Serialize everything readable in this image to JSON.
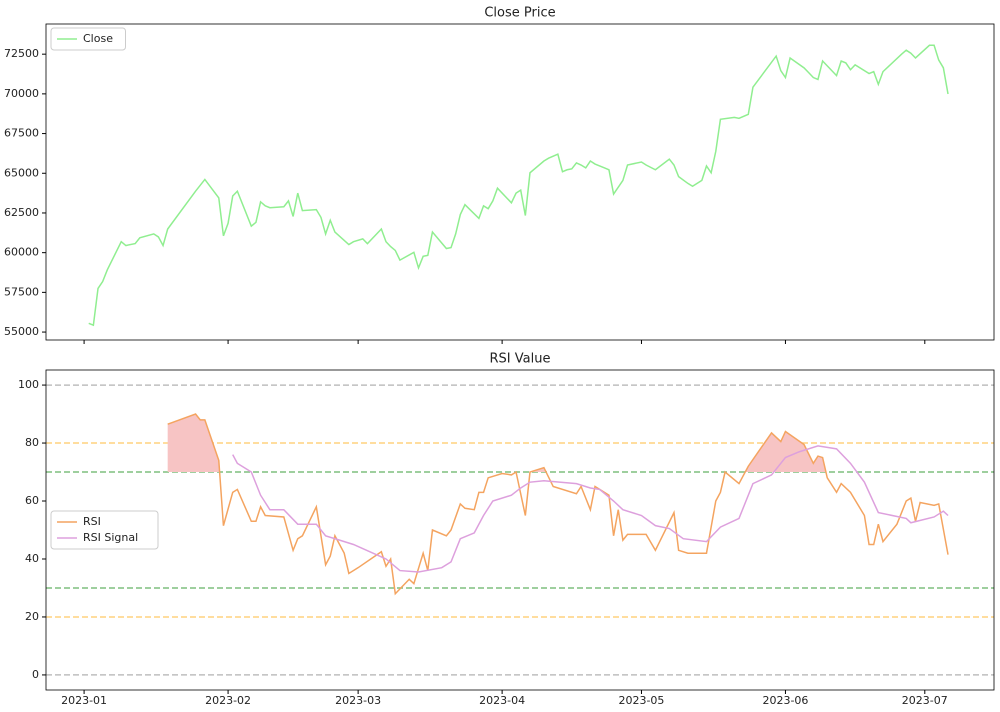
{
  "chart_data": [
    {
      "type": "line",
      "title": "Close Price",
      "legend": "upper left",
      "xlim": [
        -8.2,
        195.9
      ],
      "xticks": [
        0,
        31,
        59,
        90,
        120,
        151,
        181
      ],
      "ylim": [
        54500,
        74400
      ],
      "yticks": [
        55000,
        57500,
        60000,
        62500,
        65000,
        67500,
        70000,
        72500
      ],
      "series": [
        {
          "name": "Close",
          "color": "#90ee90",
          "x": [
            1,
            2,
            3,
            4,
            5,
            8,
            9,
            11,
            12,
            15,
            16,
            17,
            18,
            24,
            26,
            29,
            30,
            31,
            32,
            33,
            36,
            37,
            38,
            39,
            40,
            43,
            44,
            45,
            46,
            47,
            50,
            51,
            52,
            53,
            54,
            57,
            58,
            60,
            61,
            64,
            65,
            66,
            67,
            68,
            71,
            72,
            73,
            74,
            75,
            78,
            79,
            80,
            81,
            82,
            85,
            86,
            87,
            88,
            89,
            92,
            93,
            94,
            95,
            96,
            99,
            100,
            102,
            103,
            104,
            105,
            106,
            107,
            108,
            109,
            110,
            112,
            113,
            114,
            116,
            117,
            120,
            121,
            123,
            126,
            127,
            128,
            130,
            131,
            133,
            134,
            135,
            136,
            137,
            140,
            141,
            143,
            144,
            149,
            150,
            151,
            152,
            155,
            156,
            157,
            158,
            159,
            162,
            163,
            164,
            165,
            166,
            169,
            170,
            171,
            172,
            176,
            177,
            178,
            179,
            182,
            183,
            184,
            185,
            186
          ],
          "values": [
            55550,
            55430,
            57750,
            58180,
            58920,
            60690,
            60450,
            60570,
            60940,
            61180,
            60990,
            60450,
            61490,
            63870,
            64610,
            63450,
            61060,
            61850,
            63570,
            63870,
            61670,
            61910,
            63200,
            62950,
            62830,
            62890,
            63260,
            62280,
            63750,
            62650,
            62710,
            62220,
            61180,
            62040,
            61300,
            60510,
            60690,
            60870,
            60570,
            61490,
            60690,
            60380,
            60140,
            59530,
            60020,
            59040,
            59770,
            59830,
            61300,
            60260,
            60320,
            61180,
            62400,
            63020,
            62160,
            62950,
            62770,
            63260,
            64060,
            63140,
            63750,
            63940,
            62340,
            65030,
            65770,
            65950,
            66200,
            65100,
            65220,
            65280,
            65650,
            65520,
            65340,
            65770,
            65580,
            65340,
            65220,
            63690,
            64550,
            65520,
            65710,
            65520,
            65220,
            65890,
            65520,
            64790,
            64360,
            64180,
            64550,
            65460,
            65030,
            66380,
            68400,
            68520,
            68460,
            68710,
            70420,
            72380,
            71460,
            71030,
            72260,
            71640,
            71340,
            71030,
            70910,
            72070,
            71150,
            72070,
            71950,
            71520,
            71830,
            71280,
            71400,
            70600,
            71400,
            72500,
            72750,
            72560,
            72260,
            73060,
            73060,
            72130,
            71640,
            69990
          ]
        }
      ]
    },
    {
      "type": "line",
      "title": "RSI Value",
      "legend": "center left",
      "xlim": [
        -8.2,
        195.9
      ],
      "xticks": [
        {
          "value": 0,
          "label": "2023-01"
        },
        {
          "value": 31,
          "label": "2023-02"
        },
        {
          "value": 59,
          "label": "2023-03"
        },
        {
          "value": 90,
          "label": "2023-04"
        },
        {
          "value": 120,
          "label": "2023-05"
        },
        {
          "value": 151,
          "label": "2023-06"
        },
        {
          "value": 181,
          "label": "2023-07"
        }
      ],
      "ylim": [
        -5.2,
        105.2
      ],
      "yticks": [
        0,
        20,
        40,
        60,
        80,
        100
      ],
      "hlines": [
        {
          "value": 100,
          "color": "#bfbfbf"
        },
        {
          "value": 80,
          "color": "#ffd27f"
        },
        {
          "value": 70,
          "color": "#7fbf7f"
        },
        {
          "value": 30,
          "color": "#7fbf7f"
        },
        {
          "value": 20,
          "color": "#ffd27f"
        },
        {
          "value": 0,
          "color": "#bfbfbf"
        }
      ],
      "fill": {
        "above": 70,
        "color": "#f7c4c4"
      },
      "series": [
        {
          "name": "RSI",
          "color": "#f4a460",
          "x": [
            18,
            24,
            25,
            26,
            29,
            30,
            32,
            33,
            36,
            37,
            38,
            39,
            43,
            45,
            46,
            47,
            50,
            52,
            53,
            54,
            56,
            57,
            59,
            64,
            65,
            66,
            67,
            70,
            71,
            73,
            74,
            75,
            78,
            79,
            81,
            82,
            84,
            85,
            86,
            87,
            90,
            92,
            93,
            95,
            96,
            99,
            101,
            106,
            107,
            109,
            110,
            113,
            114,
            115,
            116,
            117,
            121,
            123,
            127,
            128,
            130,
            134,
            136,
            137,
            138,
            141,
            143,
            148,
            150,
            151,
            155,
            157,
            158,
            159,
            160,
            162,
            163,
            165,
            168,
            169,
            170,
            171,
            172,
            175,
            177,
            178,
            179,
            180,
            183,
            184,
            186
          ],
          "values": [
            86.5,
            90,
            88,
            88,
            74,
            51.5,
            63,
            64,
            53,
            53,
            58,
            55,
            54.5,
            43,
            47,
            48,
            58,
            38,
            41,
            48,
            42,
            35,
            37,
            42.5,
            37.5,
            40,
            28,
            33,
            31.5,
            42,
            36,
            50,
            48,
            50,
            59,
            57.5,
            57,
            63,
            63,
            68,
            69.5,
            69,
            70,
            55,
            70,
            71.5,
            65,
            62.5,
            65,
            57,
            65,
            62,
            48,
            57,
            46.5,
            48.5,
            48.5,
            43,
            56,
            43,
            42,
            42,
            60,
            63,
            70,
            66,
            72,
            83.5,
            80.5,
            84,
            79.5,
            73,
            75.5,
            75,
            68,
            63,
            66,
            63,
            55,
            45,
            45,
            52,
            46,
            52,
            60,
            61,
            53,
            59.5,
            58.5,
            59,
            41.5
          ]
        },
        {
          "name": "RSI Signal",
          "color": "#dda0dd",
          "x": [
            32,
            33,
            36,
            38,
            40,
            43,
            46,
            50,
            52,
            55,
            58,
            65,
            68,
            72,
            77,
            79,
            81,
            84,
            86,
            88,
            92,
            94,
            96,
            99,
            106,
            109,
            111,
            114,
            116,
            120,
            123,
            126,
            129,
            134,
            137,
            141,
            144,
            148,
            151,
            154,
            158,
            162,
            165,
            168,
            171,
            177,
            178,
            183,
            185,
            186
          ],
          "values": [
            76,
            73,
            70,
            62,
            57,
            57,
            52,
            52,
            48,
            46.5,
            45,
            40,
            36,
            35.5,
            37,
            39,
            47,
            49,
            55,
            60,
            62,
            64.5,
            66.5,
            67,
            66,
            64.5,
            64,
            60,
            57,
            55,
            51.5,
            50.5,
            47,
            46,
            51,
            54,
            66,
            69,
            75,
            77,
            79,
            78,
            73,
            66.5,
            56,
            54,
            52.5,
            54.5,
            56.5,
            55
          ]
        }
      ]
    }
  ]
}
